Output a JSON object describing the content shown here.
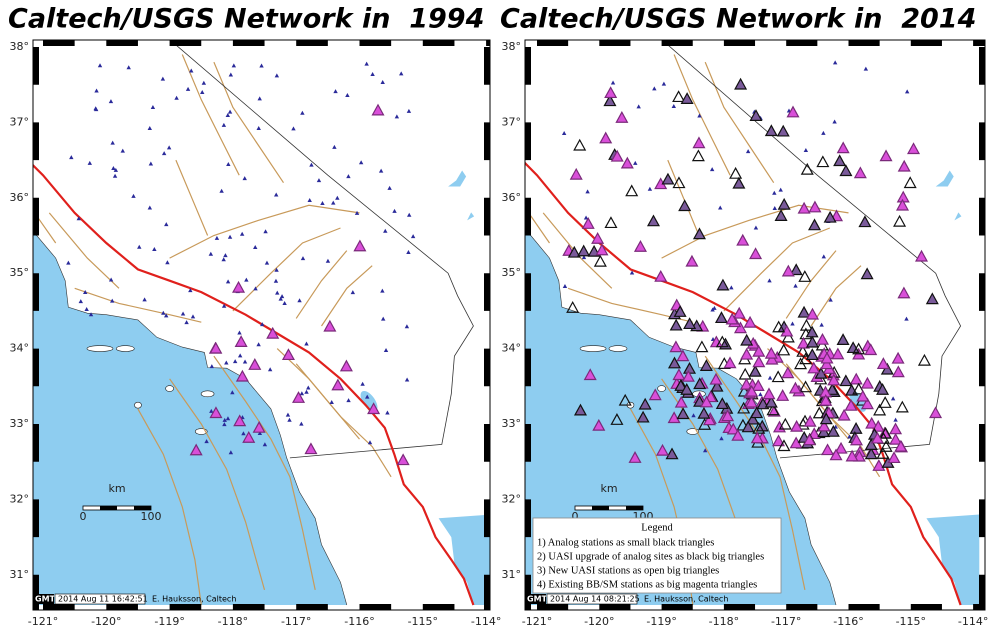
{
  "panels": [
    {
      "title": "Caltech/USGS Network in  1994",
      "lat_labels": [
        "38°",
        "37°",
        "36°",
        "35°",
        "34°",
        "33°",
        "32°",
        "31°"
      ],
      "lon_labels": [
        "-121°",
        "-120°",
        "-119°",
        "-118°",
        "-117°",
        "-116°",
        "-115°",
        "-114°"
      ],
      "scale": {
        "unit": "km",
        "start": "0",
        "end": "100"
      },
      "logo": "GMT",
      "timestamp": "2014 Aug 11 16:42:51",
      "credit": "E. Hauksson, Caltech"
    },
    {
      "title": "Caltech/USGS Network in  2014",
      "lat_labels": [
        "38°",
        "37°",
        "36°",
        "35°",
        "34°",
        "33°",
        "32°",
        "31°"
      ],
      "lon_labels": [
        "-121°",
        "-120°",
        "-119°",
        "-118°",
        "-117°",
        "-116°",
        "-115°",
        "-114°"
      ],
      "scale": {
        "unit": "km",
        "start": "0",
        "end": "100"
      },
      "logo": "GMT",
      "timestamp": "2014 Aug 14 08:21:25",
      "credit": "E. Hauksson, Caltech",
      "legend": {
        "title": "Legend",
        "items": [
          "1) Analog stations as small black triangles",
          "2) UASI upgrade of analog sites as black big triangles",
          "3) New UASI stations as open big triangles",
          "4) Existing BB/SM stations as big magenta triangles"
        ]
      }
    }
  ]
}
